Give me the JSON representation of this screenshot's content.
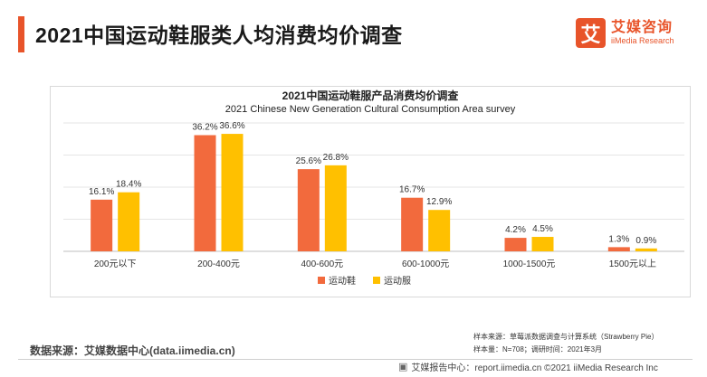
{
  "page_title": "2021中国运动鞋服类人均消费均价调查",
  "logo": {
    "mark": "艾",
    "cn": "艾媒咨询",
    "en": "iiMedia Research"
  },
  "chart_data": {
    "type": "bar",
    "title": "2021中国运动鞋服产品消费均价调查",
    "subtitle": "2021 Chinese New Generation Cultural Consumption Area survey",
    "categories": [
      "200元以下",
      "200-400元",
      "400-600元",
      "600-1000元",
      "1000-1500元",
      "1500元以上"
    ],
    "series": [
      {
        "name": "运动鞋",
        "color": "#f26a3d",
        "values": [
          16.1,
          36.2,
          25.6,
          16.7,
          4.2,
          1.3
        ],
        "labels": [
          "16.1%",
          "36.2%",
          "25.6%",
          "16.7%",
          "4.2%",
          "1.3%"
        ]
      },
      {
        "name": "运动服",
        "color": "#ffc000",
        "values": [
          18.4,
          36.6,
          26.8,
          12.9,
          4.5,
          0.9
        ],
        "labels": [
          "18.4%",
          "36.6%",
          "26.8%",
          "12.9%",
          "4.5%",
          "0.9%"
        ]
      }
    ],
    "ylim": [
      0,
      40
    ],
    "grid": true,
    "legend": "bottom-center"
  },
  "source": "数据来源：艾媒数据中心(data.iimedia.cn)",
  "sample_note": {
    "line1": "样本来源：草莓派数据调查与计算系统（Strawberry Pie）",
    "line2": "样本量：N=708；调研时间：2021年3月"
  },
  "footer": {
    "icon": "report-icon",
    "text": "艾媒报告中心：report.iimedia.cn   ©2021  iiMedia Research  Inc"
  }
}
